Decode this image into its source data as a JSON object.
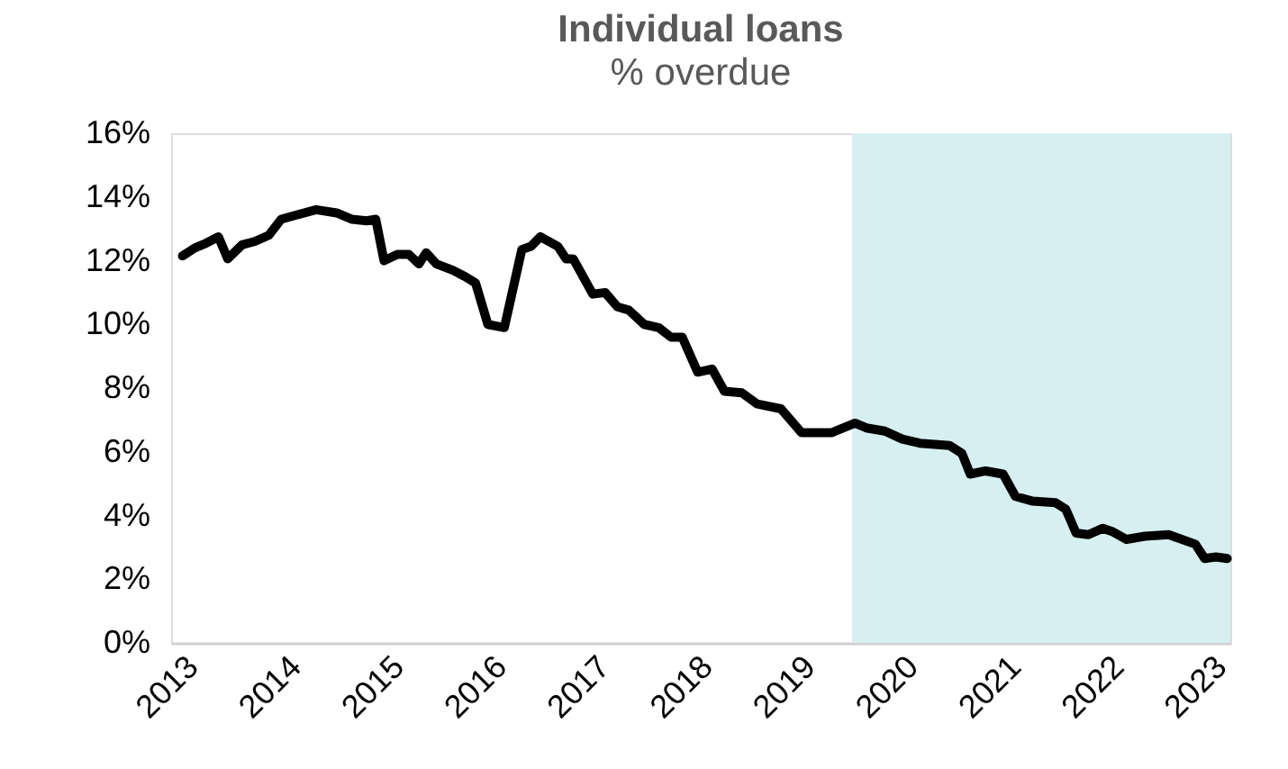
{
  "chart_data": {
    "type": "line",
    "title": "Individual loans",
    "subtitle": "% overdue",
    "x": [
      2013.01,
      2013.13,
      2013.24,
      2013.36,
      2013.45,
      2013.59,
      2013.71,
      2013.85,
      2013.97,
      2014.08,
      2014.31,
      2014.51,
      2014.66,
      2014.8,
      2014.89,
      2014.97,
      2015.1,
      2015.21,
      2015.31,
      2015.38,
      2015.48,
      2015.64,
      2015.76,
      2015.86,
      2015.98,
      2016.14,
      2016.31,
      2016.4,
      2016.49,
      2016.66,
      2016.74,
      2016.81,
      2017.0,
      2017.12,
      2017.24,
      2017.35,
      2017.5,
      2017.64,
      2017.76,
      2017.87,
      2018.02,
      2018.16,
      2018.28,
      2018.45,
      2018.6,
      2018.83,
      2019.03,
      2019.32,
      2019.55,
      2019.66,
      2019.84,
      2020.01,
      2020.18,
      2020.47,
      2020.59,
      2020.67,
      2020.82,
      2020.99,
      2021.11,
      2021.28,
      2021.5,
      2021.6,
      2021.7,
      2021.82,
      2021.96,
      2022.05,
      2022.19,
      2022.37,
      2022.6,
      2022.86,
      2022.95,
      2023.06,
      2023.17
    ],
    "series": [
      {
        "color": "#000000",
        "values": [
          12.15,
          12.4,
          12.55,
          12.75,
          12.06,
          12.5,
          12.6,
          12.8,
          13.3,
          13.4,
          13.6,
          13.5,
          13.3,
          13.25,
          13.3,
          12.0,
          12.2,
          12.2,
          11.9,
          12.25,
          11.9,
          11.7,
          11.5,
          11.3,
          10.0,
          9.9,
          12.35,
          12.45,
          12.75,
          12.45,
          12.06,
          12.06,
          10.95,
          11.0,
          10.55,
          10.45,
          10.0,
          9.9,
          9.6,
          9.6,
          8.5,
          8.6,
          7.9,
          7.85,
          7.5,
          7.35,
          6.6,
          6.6,
          6.9,
          6.75,
          6.65,
          6.4,
          6.27,
          6.2,
          5.95,
          5.3,
          5.4,
          5.3,
          4.6,
          4.45,
          4.4,
          4.2,
          3.45,
          3.4,
          3.6,
          3.5,
          3.25,
          3.35,
          3.4,
          3.1,
          2.65,
          2.7,
          2.65
        ]
      }
    ],
    "xlim": [
      2012.9,
      2023.2
    ],
    "xticks": [
      2013,
      2014,
      2015,
      2016,
      2017,
      2018,
      2019,
      2020,
      2021,
      2022,
      2023
    ],
    "ylim": [
      0,
      16
    ],
    "yticks": [
      {
        "value": 0,
        "label": "0%"
      },
      {
        "value": 2,
        "label": "2%"
      },
      {
        "value": 4,
        "label": "4%"
      },
      {
        "value": 6,
        "label": "6%"
      },
      {
        "value": 8,
        "label": "8%"
      },
      {
        "value": 10,
        "label": "10%"
      },
      {
        "value": 12,
        "label": "12%"
      },
      {
        "value": 14,
        "label": "14%"
      },
      {
        "value": 16,
        "label": "16%"
      }
    ],
    "bands": [
      {
        "axis": "x",
        "from": 2019.52,
        "to": 2023.2,
        "color": "#d6eff0"
      }
    ],
    "grid": false,
    "marker": "none",
    "line_style": "solid"
  }
}
